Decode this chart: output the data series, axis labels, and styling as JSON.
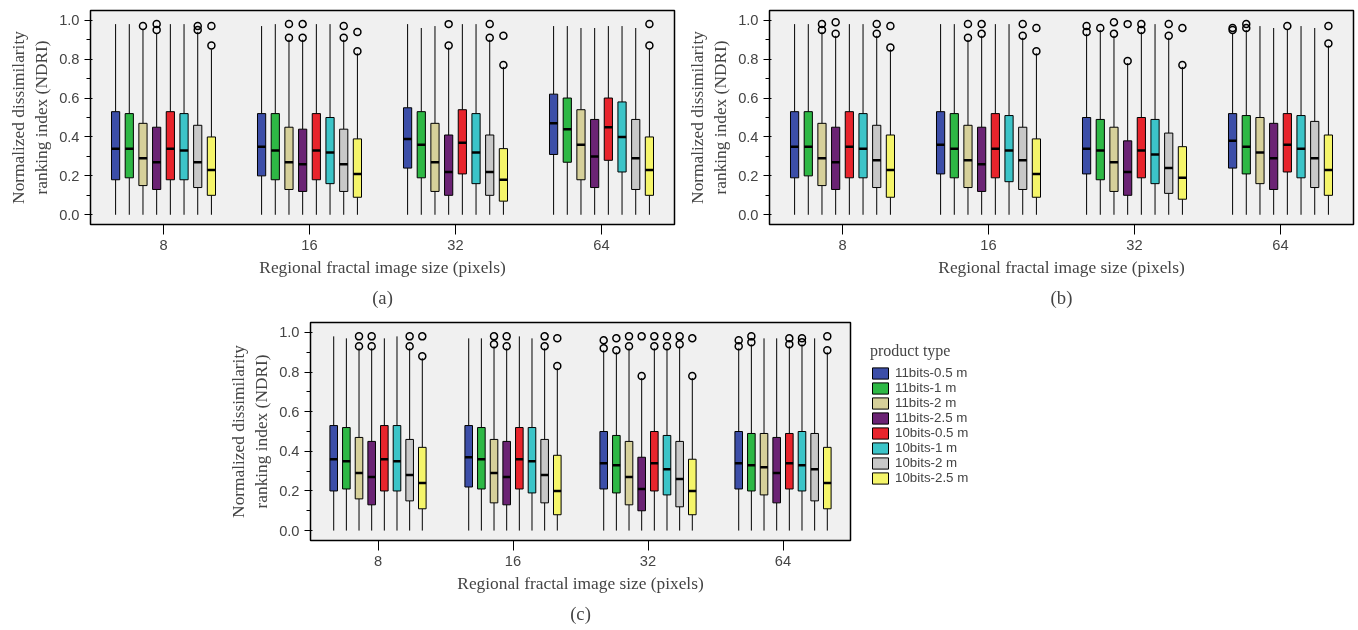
{
  "chart_data": [
    {
      "type": "box",
      "categories": [
        "8",
        "16",
        "32",
        "64"
      ],
      "xlabel": "Regional fractal image size (pixels)",
      "ylabel": "Normalized dissimilarity\nranking index (NDRI)",
      "annotations": [
        "(a)"
      ],
      "ylim": [
        -0.05,
        1.05
      ],
      "yticks": [
        {
          "value": 0,
          "label": "0.0"
        },
        {
          "value": 0.1,
          "label": null
        },
        {
          "value": 0.2,
          "label": "0.2"
        },
        {
          "value": 0.3,
          "label": null
        },
        {
          "value": 0.4,
          "label": "0.4"
        },
        {
          "value": 0.5,
          "label": null
        },
        {
          "value": 0.6,
          "label": "0.6"
        },
        {
          "value": 0.7,
          "label": null
        },
        {
          "value": 0.8,
          "label": "0.8"
        },
        {
          "value": 0.9,
          "label": null
        },
        {
          "value": 1.0,
          "label": "1.0"
        }
      ],
      "grid": false,
      "legend": false,
      "series": [
        {
          "color": "#3c4ea8",
          "boxes": [
            {
              "low": 0,
              "q1": 0.18,
              "median": 0.34,
              "q3": 0.53,
              "high": 0.98
            },
            {
              "low": 0,
              "q1": 0.2,
              "median": 0.35,
              "q3": 0.52,
              "high": 0.97
            },
            {
              "low": 0,
              "q1": 0.24,
              "median": 0.39,
              "q3": 0.55,
              "high": 0.98
            },
            {
              "low": 0,
              "q1": 0.31,
              "median": 0.47,
              "q3": 0.62,
              "high": 0.97
            }
          ]
        },
        {
          "color": "#2eb845",
          "boxes": [
            {
              "low": 0,
              "q1": 0.19,
              "median": 0.34,
              "q3": 0.52,
              "high": 0.98
            },
            {
              "low": 0,
              "q1": 0.18,
              "median": 0.33,
              "q3": 0.52,
              "high": 0.98
            },
            {
              "low": 0,
              "q1": 0.19,
              "median": 0.36,
              "q3": 0.53,
              "high": 0.96
            },
            {
              "low": 0,
              "q1": 0.27,
              "median": 0.44,
              "q3": 0.6,
              "high": 0.97
            }
          ]
        },
        {
          "color": "#d6d09a",
          "boxes": [
            {
              "low": 0,
              "q1": 0.15,
              "median": 0.29,
              "q3": 0.47,
              "high": 0.95,
              "outliers": [
                0.97
              ]
            },
            {
              "low": 0,
              "q1": 0.13,
              "median": 0.27,
              "q3": 0.45,
              "high": 0.9,
              "outliers": [
                0.91,
                0.98
              ]
            },
            {
              "low": 0,
              "q1": 0.12,
              "median": 0.27,
              "q3": 0.47,
              "high": 0.97
            },
            {
              "low": 0,
              "q1": 0.18,
              "median": 0.36,
              "q3": 0.54,
              "high": 0.96
            }
          ]
        },
        {
          "color": "#6b2374",
          "boxes": [
            {
              "low": 0,
              "q1": 0.13,
              "median": 0.27,
              "q3": 0.45,
              "high": 0.93,
              "outliers": [
                0.95,
                0.98
              ]
            },
            {
              "low": 0,
              "q1": 0.12,
              "median": 0.26,
              "q3": 0.44,
              "high": 0.9,
              "outliers": [
                0.91,
                0.98
              ]
            },
            {
              "low": 0,
              "q1": 0.1,
              "median": 0.22,
              "q3": 0.41,
              "high": 0.86,
              "outliers": [
                0.87,
                0.98
              ]
            },
            {
              "low": 0,
              "q1": 0.14,
              "median": 0.3,
              "q3": 0.49,
              "high": 0.96
            }
          ]
        },
        {
          "color": "#e8242c",
          "boxes": [
            {
              "low": 0,
              "q1": 0.18,
              "median": 0.34,
              "q3": 0.53,
              "high": 0.98
            },
            {
              "low": 0,
              "q1": 0.18,
              "median": 0.33,
              "q3": 0.52,
              "high": 0.98
            },
            {
              "low": 0,
              "q1": 0.21,
              "median": 0.37,
              "q3": 0.54,
              "high": 0.98
            },
            {
              "low": 0,
              "q1": 0.28,
              "median": 0.45,
              "q3": 0.6,
              "high": 0.97
            }
          ]
        },
        {
          "color": "#3cc4c8",
          "boxes": [
            {
              "low": 0,
              "q1": 0.18,
              "median": 0.33,
              "q3": 0.52,
              "high": 0.98
            },
            {
              "low": 0,
              "q1": 0.16,
              "median": 0.32,
              "q3": 0.5,
              "high": 0.98
            },
            {
              "low": 0,
              "q1": 0.16,
              "median": 0.32,
              "q3": 0.52,
              "high": 0.98
            },
            {
              "low": 0,
              "q1": 0.22,
              "median": 0.4,
              "q3": 0.58,
              "high": 0.97
            }
          ]
        },
        {
          "color": "#c8c8c8",
          "boxes": [
            {
              "low": 0,
              "q1": 0.14,
              "median": 0.27,
              "q3": 0.46,
              "high": 0.94,
              "outliers": [
                0.95,
                0.97
              ]
            },
            {
              "low": 0,
              "q1": 0.12,
              "median": 0.26,
              "q3": 0.44,
              "high": 0.9,
              "outliers": [
                0.91,
                0.97
              ]
            },
            {
              "low": 0,
              "q1": 0.1,
              "median": 0.22,
              "q3": 0.41,
              "high": 0.9,
              "outliers": [
                0.91,
                0.98
              ]
            },
            {
              "low": 0,
              "q1": 0.13,
              "median": 0.29,
              "q3": 0.49,
              "high": 0.96
            }
          ]
        },
        {
          "color": "#f5f56a",
          "boxes": [
            {
              "low": 0,
              "q1": 0.1,
              "median": 0.23,
              "q3": 0.4,
              "high": 0.85,
              "outliers": [
                0.87,
                0.97
              ]
            },
            {
              "low": 0,
              "q1": 0.09,
              "median": 0.21,
              "q3": 0.39,
              "high": 0.83,
              "outliers": [
                0.84,
                0.94
              ]
            },
            {
              "low": 0,
              "q1": 0.07,
              "median": 0.18,
              "q3": 0.34,
              "high": 0.76,
              "outliers": [
                0.77,
                0.92
              ]
            },
            {
              "low": 0,
              "q1": 0.1,
              "median": 0.23,
              "q3": 0.4,
              "high": 0.85,
              "outliers": [
                0.87,
                0.98
              ]
            }
          ]
        }
      ]
    },
    {
      "type": "box",
      "categories": [
        "8",
        "16",
        "32",
        "64"
      ],
      "xlabel": "Regional fractal image size (pixels)",
      "ylabel": "Normalized dissimilarity\nranking index (NDRI)",
      "annotations": [
        "(b)"
      ],
      "ylim": [
        -0.05,
        1.05
      ],
      "yticks": [
        {
          "value": 0,
          "label": "0.0"
        },
        {
          "value": 0.1,
          "label": null
        },
        {
          "value": 0.2,
          "label": "0.2"
        },
        {
          "value": 0.3,
          "label": null
        },
        {
          "value": 0.4,
          "label": "0.4"
        },
        {
          "value": 0.5,
          "label": null
        },
        {
          "value": 0.6,
          "label": "0.6"
        },
        {
          "value": 0.7,
          "label": null
        },
        {
          "value": 0.8,
          "label": "0.8"
        },
        {
          "value": 0.9,
          "label": null
        },
        {
          "value": 1.0,
          "label": "1.0"
        }
      ],
      "grid": false,
      "legend": false,
      "series": [
        {
          "color": "#3c4ea8",
          "boxes": [
            {
              "low": 0,
              "q1": 0.19,
              "median": 0.35,
              "q3": 0.53,
              "high": 0.98
            },
            {
              "low": 0,
              "q1": 0.21,
              "median": 0.36,
              "q3": 0.53,
              "high": 0.98
            },
            {
              "low": 0,
              "q1": 0.21,
              "median": 0.34,
              "q3": 0.5,
              "high": 0.93,
              "outliers": [
                0.94,
                0.97
              ]
            },
            {
              "low": 0,
              "q1": 0.24,
              "median": 0.38,
              "q3": 0.52,
              "high": 0.93,
              "outliers": [
                0.95,
                0.96
              ]
            }
          ]
        },
        {
          "color": "#2eb845",
          "boxes": [
            {
              "low": 0,
              "q1": 0.2,
              "median": 0.35,
              "q3": 0.53,
              "high": 0.98
            },
            {
              "low": 0,
              "q1": 0.19,
              "median": 0.34,
              "q3": 0.52,
              "high": 0.98
            },
            {
              "low": 0,
              "q1": 0.18,
              "median": 0.33,
              "q3": 0.49,
              "high": 0.95,
              "outliers": [
                0.96
              ]
            },
            {
              "low": 0,
              "q1": 0.21,
              "median": 0.35,
              "q3": 0.51,
              "high": 0.95,
              "outliers": [
                0.96,
                0.98
              ]
            }
          ]
        },
        {
          "color": "#d6d09a",
          "boxes": [
            {
              "low": 0,
              "q1": 0.15,
              "median": 0.29,
              "q3": 0.47,
              "high": 0.94,
              "outliers": [
                0.95,
                0.98
              ]
            },
            {
              "low": 0,
              "q1": 0.14,
              "median": 0.28,
              "q3": 0.46,
              "high": 0.9,
              "outliers": [
                0.91,
                0.98
              ]
            },
            {
              "low": 0,
              "q1": 0.12,
              "median": 0.27,
              "q3": 0.45,
              "high": 0.92,
              "outliers": [
                0.93,
                0.99
              ]
            },
            {
              "low": 0,
              "q1": 0.16,
              "median": 0.32,
              "q3": 0.5,
              "high": 0.97
            }
          ]
        },
        {
          "color": "#6b2374",
          "boxes": [
            {
              "low": 0,
              "q1": 0.13,
              "median": 0.27,
              "q3": 0.45,
              "high": 0.92,
              "outliers": [
                0.93,
                0.99
              ]
            },
            {
              "low": 0,
              "q1": 0.12,
              "median": 0.26,
              "q3": 0.45,
              "high": 0.92,
              "outliers": [
                0.93,
                0.98
              ]
            },
            {
              "low": 0,
              "q1": 0.1,
              "median": 0.22,
              "q3": 0.38,
              "high": 0.78,
              "outliers": [
                0.79,
                0.98
              ]
            },
            {
              "low": 0,
              "q1": 0.13,
              "median": 0.29,
              "q3": 0.47,
              "high": 0.96
            }
          ]
        },
        {
          "color": "#e8242c",
          "boxes": [
            {
              "low": 0,
              "q1": 0.19,
              "median": 0.35,
              "q3": 0.53,
              "high": 0.98
            },
            {
              "low": 0,
              "q1": 0.19,
              "median": 0.34,
              "q3": 0.52,
              "high": 0.98
            },
            {
              "low": 0,
              "q1": 0.19,
              "median": 0.33,
              "q3": 0.5,
              "high": 0.94,
              "outliers": [
                0.95,
                0.98
              ]
            },
            {
              "low": 0,
              "q1": 0.22,
              "median": 0.36,
              "q3": 0.52,
              "high": 0.95,
              "outliers": [
                0.97
              ]
            }
          ]
        },
        {
          "color": "#3cc4c8",
          "boxes": [
            {
              "low": 0,
              "q1": 0.19,
              "median": 0.34,
              "q3": 0.52,
              "high": 0.98
            },
            {
              "low": 0,
              "q1": 0.17,
              "median": 0.33,
              "q3": 0.51,
              "high": 0.98
            },
            {
              "low": 0,
              "q1": 0.16,
              "median": 0.31,
              "q3": 0.49,
              "high": 0.98
            },
            {
              "low": 0,
              "q1": 0.19,
              "median": 0.34,
              "q3": 0.51,
              "high": 0.97
            }
          ]
        },
        {
          "color": "#c8c8c8",
          "boxes": [
            {
              "low": 0,
              "q1": 0.14,
              "median": 0.28,
              "q3": 0.46,
              "high": 0.92,
              "outliers": [
                0.93,
                0.98
              ]
            },
            {
              "low": 0,
              "q1": 0.13,
              "median": 0.28,
              "q3": 0.45,
              "high": 0.91,
              "outliers": [
                0.92,
                0.98
              ]
            },
            {
              "low": 0,
              "q1": 0.11,
              "median": 0.24,
              "q3": 0.42,
              "high": 0.91,
              "outliers": [
                0.92,
                0.98
              ]
            },
            {
              "low": 0,
              "q1": 0.14,
              "median": 0.29,
              "q3": 0.48,
              "high": 0.96
            }
          ]
        },
        {
          "color": "#f5f56a",
          "boxes": [
            {
              "low": 0,
              "q1": 0.09,
              "median": 0.23,
              "q3": 0.41,
              "high": 0.85,
              "outliers": [
                0.86,
                0.97
              ]
            },
            {
              "low": 0,
              "q1": 0.09,
              "median": 0.21,
              "q3": 0.39,
              "high": 0.83,
              "outliers": [
                0.84,
                0.96
              ]
            },
            {
              "low": 0,
              "q1": 0.08,
              "median": 0.19,
              "q3": 0.35,
              "high": 0.76,
              "outliers": [
                0.77,
                0.96
              ]
            },
            {
              "low": 0,
              "q1": 0.1,
              "median": 0.23,
              "q3": 0.41,
              "high": 0.87,
              "outliers": [
                0.88,
                0.97
              ]
            }
          ]
        }
      ]
    },
    {
      "type": "box",
      "categories": [
        "8",
        "16",
        "32",
        "64"
      ],
      "xlabel": "Regional fractal image size (pixels)",
      "ylabel": "Normalized dissimilarity\nranking index (NDRI)",
      "annotations": [
        "(c)"
      ],
      "legend_title": "product type",
      "ylim": [
        -0.05,
        1.05
      ],
      "yticks": [
        {
          "value": 0,
          "label": "0.0"
        },
        {
          "value": 0.1,
          "label": null
        },
        {
          "value": 0.2,
          "label": "0.2"
        },
        {
          "value": 0.3,
          "label": null
        },
        {
          "value": 0.4,
          "label": "0.4"
        },
        {
          "value": 0.5,
          "label": null
        },
        {
          "value": 0.6,
          "label": "0.6"
        },
        {
          "value": 0.7,
          "label": null
        },
        {
          "value": 0.8,
          "label": "0.8"
        },
        {
          "value": 0.9,
          "label": null
        },
        {
          "value": 1.0,
          "label": "1.0"
        }
      ],
      "grid": false,
      "legend": "right",
      "series": [
        {
          "name": "11bits-0.5 m",
          "color": "#3c4ea8",
          "boxes": [
            {
              "low": 0,
              "q1": 0.2,
              "median": 0.36,
              "q3": 0.53,
              "high": 0.98
            },
            {
              "low": 0,
              "q1": 0.22,
              "median": 0.37,
              "q3": 0.53,
              "high": 0.97
            },
            {
              "low": 0,
              "q1": 0.21,
              "median": 0.34,
              "q3": 0.5,
              "high": 0.91,
              "outliers": [
                0.92,
                0.96
              ]
            },
            {
              "low": 0,
              "q1": 0.21,
              "median": 0.34,
              "q3": 0.5,
              "high": 0.92,
              "outliers": [
                0.93,
                0.96
              ]
            }
          ]
        },
        {
          "name": "11bits-1 m",
          "color": "#2eb845",
          "boxes": [
            {
              "low": 0,
              "q1": 0.21,
              "median": 0.35,
              "q3": 0.52,
              "high": 0.97
            },
            {
              "low": 0,
              "q1": 0.21,
              "median": 0.36,
              "q3": 0.52,
              "high": 0.97
            },
            {
              "low": 0,
              "q1": 0.19,
              "median": 0.33,
              "q3": 0.48,
              "high": 0.9,
              "outliers": [
                0.91,
                0.97
              ]
            },
            {
              "low": 0,
              "q1": 0.2,
              "median": 0.33,
              "q3": 0.49,
              "high": 0.94,
              "outliers": [
                0.95,
                0.98
              ]
            }
          ]
        },
        {
          "name": "11bits-2 m",
          "color": "#d6d09a",
          "boxes": [
            {
              "low": 0,
              "q1": 0.16,
              "median": 0.29,
              "q3": 0.47,
              "high": 0.92,
              "outliers": [
                0.93,
                0.98
              ]
            },
            {
              "low": 0,
              "q1": 0.14,
              "median": 0.29,
              "q3": 0.46,
              "high": 0.93,
              "outliers": [
                0.94,
                0.98
              ]
            },
            {
              "low": 0,
              "q1": 0.13,
              "median": 0.27,
              "q3": 0.45,
              "high": 0.92,
              "outliers": [
                0.93,
                0.98
              ]
            },
            {
              "low": 0,
              "q1": 0.18,
              "median": 0.32,
              "q3": 0.49,
              "high": 0.97
            }
          ]
        },
        {
          "name": "11bits-2.5 m",
          "color": "#6b2374",
          "boxes": [
            {
              "low": 0,
              "q1": 0.13,
              "median": 0.27,
              "q3": 0.45,
              "high": 0.92,
              "outliers": [
                0.93,
                0.98
              ]
            },
            {
              "low": 0,
              "q1": 0.13,
              "median": 0.27,
              "q3": 0.45,
              "high": 0.92,
              "outliers": [
                0.93,
                0.98
              ]
            },
            {
              "low": 0,
              "q1": 0.1,
              "median": 0.21,
              "q3": 0.37,
              "high": 0.77,
              "outliers": [
                0.78,
                0.98
              ]
            },
            {
              "low": 0,
              "q1": 0.14,
              "median": 0.29,
              "q3": 0.47,
              "high": 0.97
            }
          ]
        },
        {
          "name": "10bits-0.5 m",
          "color": "#e8242c",
          "boxes": [
            {
              "low": 0,
              "q1": 0.2,
              "median": 0.36,
              "q3": 0.53,
              "high": 0.97
            },
            {
              "low": 0,
              "q1": 0.21,
              "median": 0.36,
              "q3": 0.52,
              "high": 0.98
            },
            {
              "low": 0,
              "q1": 0.2,
              "median": 0.34,
              "q3": 0.5,
              "high": 0.92,
              "outliers": [
                0.93,
                0.98
              ]
            },
            {
              "low": 0,
              "q1": 0.21,
              "median": 0.34,
              "q3": 0.49,
              "high": 0.93,
              "outliers": [
                0.94,
                0.97
              ]
            }
          ]
        },
        {
          "name": "10bits-1 m",
          "color": "#3cc4c8",
          "boxes": [
            {
              "low": 0,
              "q1": 0.2,
              "median": 0.35,
              "q3": 0.53,
              "high": 0.98
            },
            {
              "low": 0,
              "q1": 0.19,
              "median": 0.35,
              "q3": 0.52,
              "high": 0.97
            },
            {
              "low": 0,
              "q1": 0.18,
              "median": 0.31,
              "q3": 0.48,
              "high": 0.92,
              "outliers": [
                0.93,
                0.98
              ]
            },
            {
              "low": 0,
              "q1": 0.2,
              "median": 0.33,
              "q3": 0.5,
              "high": 0.94,
              "outliers": [
                0.95,
                0.97
              ]
            }
          ]
        },
        {
          "name": "10bits-2 m",
          "color": "#c8c8c8",
          "boxes": [
            {
              "low": 0,
              "q1": 0.15,
              "median": 0.28,
              "q3": 0.46,
              "high": 0.92,
              "outliers": [
                0.93,
                0.98
              ]
            },
            {
              "low": 0,
              "q1": 0.14,
              "median": 0.28,
              "q3": 0.46,
              "high": 0.92,
              "outliers": [
                0.93,
                0.98
              ]
            },
            {
              "low": 0,
              "q1": 0.12,
              "median": 0.26,
              "q3": 0.45,
              "high": 0.93,
              "outliers": [
                0.94,
                0.98
              ]
            },
            {
              "low": 0,
              "q1": 0.15,
              "median": 0.31,
              "q3": 0.49,
              "high": 0.97
            }
          ]
        },
        {
          "name": "10bits-2.5 m",
          "color": "#f5f56a",
          "boxes": [
            {
              "low": 0,
              "q1": 0.11,
              "median": 0.24,
              "q3": 0.42,
              "high": 0.87,
              "outliers": [
                0.88,
                0.98
              ]
            },
            {
              "low": 0,
              "q1": 0.08,
              "median": 0.2,
              "q3": 0.38,
              "high": 0.82,
              "outliers": [
                0.83,
                0.97
              ]
            },
            {
              "low": 0,
              "q1": 0.08,
              "median": 0.2,
              "q3": 0.36,
              "high": 0.77,
              "outliers": [
                0.78,
                0.97
              ]
            },
            {
              "low": 0,
              "q1": 0.11,
              "median": 0.24,
              "q3": 0.42,
              "high": 0.9,
              "outliers": [
                0.91,
                0.98
              ]
            }
          ]
        }
      ]
    }
  ]
}
